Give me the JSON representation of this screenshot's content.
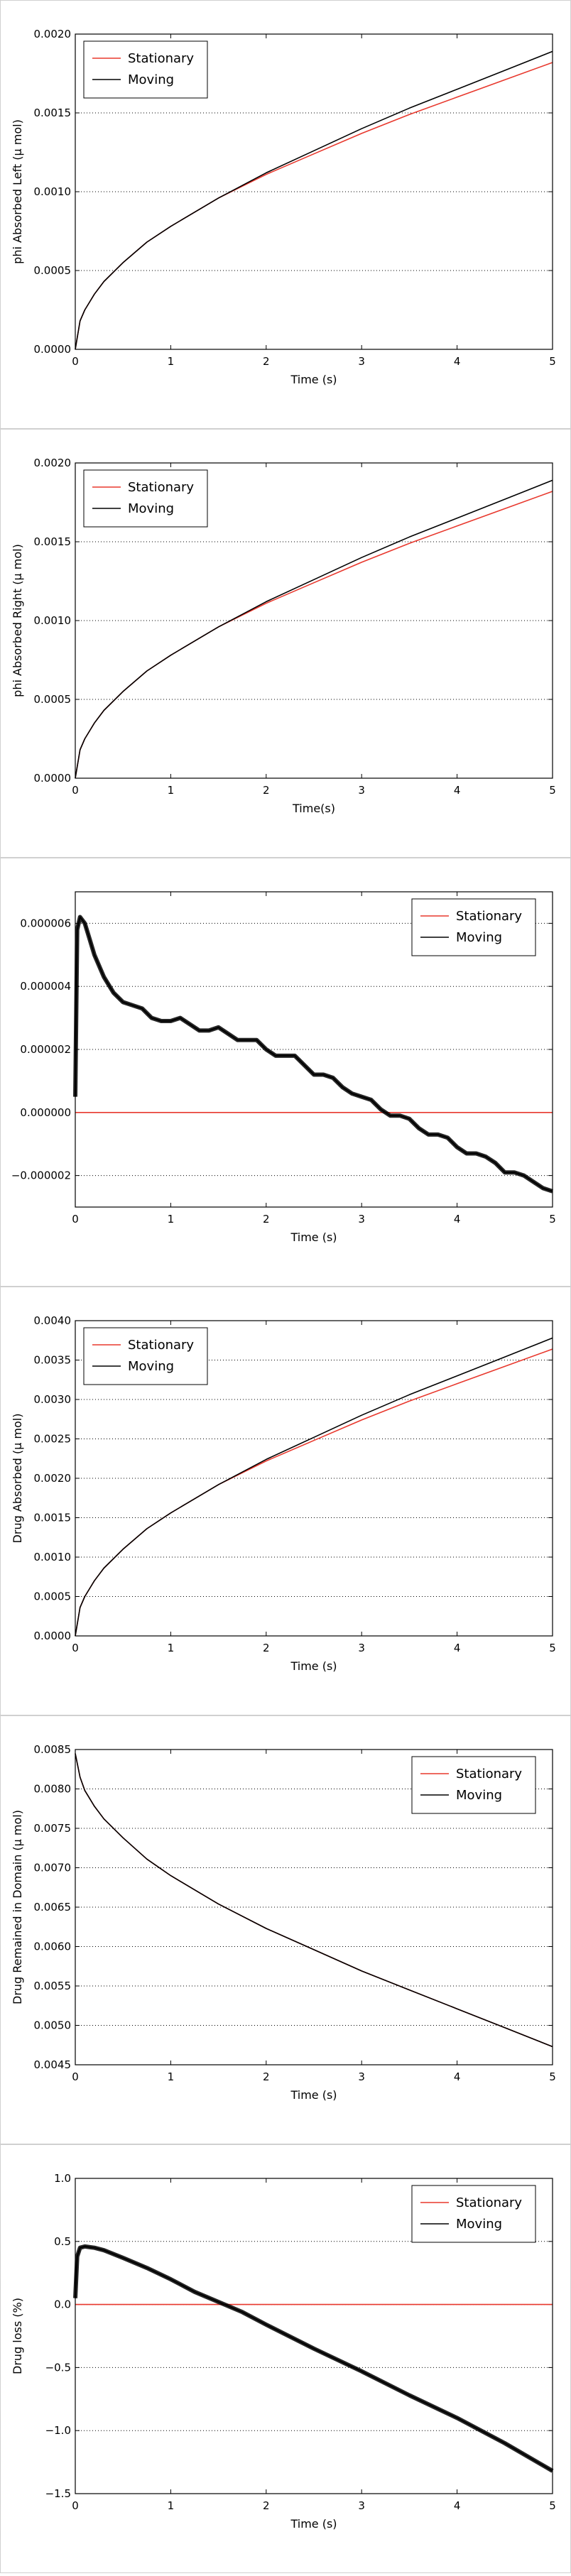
{
  "figure": {
    "background": "#ffffff",
    "panel_border_color": "#d0d0d0",
    "series_colors": {
      "Stationary": "#e8382d",
      "Moving": "#000000"
    }
  },
  "chart_data": [
    {
      "type": "line",
      "title": "",
      "xlabel": "Time (s)",
      "ylabel": "phi Absorbed Left (μ mol)",
      "xlim": [
        0,
        5
      ],
      "ylim": [
        0,
        0.002
      ],
      "xticks": [
        "0",
        "1",
        "2",
        "3",
        "4",
        "5"
      ],
      "yticks": [
        "0.0000",
        "0.0005",
        "0.0010",
        "0.0015",
        "0.0020"
      ],
      "grid": "y-dotted",
      "legend": "top-left",
      "series": [
        {
          "name": "Stationary",
          "color": "#e8382d",
          "x": [
            0,
            0.05,
            0.1,
            0.2,
            0.3,
            0.5,
            0.75,
            1,
            1.5,
            2,
            2.5,
            3,
            3.5,
            4,
            4.5,
            5
          ],
          "values": [
            0,
            0.00018,
            0.00025,
            0.00035,
            0.00043,
            0.00055,
            0.00068,
            0.00078,
            0.00096,
            0.00111,
            0.00124,
            0.00137,
            0.00149,
            0.0016,
            0.00171,
            0.00182
          ]
        },
        {
          "name": "Moving",
          "color": "#000000",
          "x": [
            0,
            0.05,
            0.1,
            0.2,
            0.3,
            0.5,
            0.75,
            1,
            1.5,
            2,
            2.5,
            3,
            3.5,
            4,
            4.5,
            5
          ],
          "values": [
            0,
            0.00018,
            0.00025,
            0.00035,
            0.00043,
            0.00055,
            0.00068,
            0.00078,
            0.00096,
            0.00112,
            0.00126,
            0.0014,
            0.00153,
            0.00165,
            0.00177,
            0.00189
          ]
        }
      ]
    },
    {
      "type": "line",
      "title": "",
      "xlabel": "Time(s)",
      "ylabel": "phi Absorbed Right (μ mol)",
      "xlim": [
        0,
        5
      ],
      "ylim": [
        0,
        0.002
      ],
      "xticks": [
        "0",
        "1",
        "2",
        "3",
        "4",
        "5"
      ],
      "yticks": [
        "0.0000",
        "0.0005",
        "0.0010",
        "0.0015",
        "0.0020"
      ],
      "grid": "y-dotted",
      "legend": "top-left",
      "series": [
        {
          "name": "Stationary",
          "color": "#e8382d",
          "x": [
            0,
            0.05,
            0.1,
            0.2,
            0.3,
            0.5,
            0.75,
            1,
            1.5,
            2,
            2.5,
            3,
            3.5,
            4,
            4.5,
            5
          ],
          "values": [
            0,
            0.00018,
            0.00025,
            0.00035,
            0.00043,
            0.00055,
            0.00068,
            0.00078,
            0.00096,
            0.00111,
            0.00124,
            0.00137,
            0.00149,
            0.0016,
            0.00171,
            0.00182
          ]
        },
        {
          "name": "Moving",
          "color": "#000000",
          "x": [
            0,
            0.05,
            0.1,
            0.2,
            0.3,
            0.5,
            0.75,
            1,
            1.5,
            2,
            2.5,
            3,
            3.5,
            4,
            4.5,
            5
          ],
          "values": [
            0,
            0.00018,
            0.00025,
            0.00035,
            0.00043,
            0.00055,
            0.00068,
            0.00078,
            0.00096,
            0.00112,
            0.00126,
            0.0014,
            0.00153,
            0.00165,
            0.00177,
            0.00189
          ]
        }
      ]
    },
    {
      "type": "line",
      "title": "",
      "xlabel": "Time (s)",
      "ylabel": "",
      "xlim": [
        0,
        5
      ],
      "ylim": [
        -3e-06,
        7e-06
      ],
      "xticks": [
        "0",
        "1",
        "2",
        "3",
        "4",
        "5"
      ],
      "yticks": [
        "−0.000002",
        "0.000000",
        "0.000002",
        "0.000004",
        "0.000006"
      ],
      "grid": "y-dotted",
      "legend": "top-right",
      "series": [
        {
          "name": "Stationary",
          "color": "#e8382d",
          "x": [
            0,
            5
          ],
          "values": [
            0,
            0
          ]
        },
        {
          "name": "Moving",
          "color": "#000000",
          "thick": true,
          "x": [
            0,
            0.02,
            0.05,
            0.1,
            0.15,
            0.2,
            0.3,
            0.4,
            0.5,
            0.6,
            0.7,
            0.8,
            0.9,
            1.0,
            1.1,
            1.2,
            1.3,
            1.4,
            1.5,
            1.6,
            1.7,
            1.8,
            1.9,
            2.0,
            2.1,
            2.2,
            2.3,
            2.4,
            2.5,
            2.6,
            2.7,
            2.8,
            2.9,
            3.0,
            3.1,
            3.2,
            3.3,
            3.4,
            3.5,
            3.6,
            3.7,
            3.8,
            3.9,
            4.0,
            4.1,
            4.2,
            4.3,
            4.4,
            4.5,
            4.6,
            4.7,
            4.8,
            4.9,
            5.0
          ],
          "values": [
            5e-07,
            5.8e-06,
            6.2e-06,
            6e-06,
            5.5e-06,
            5e-06,
            4.3e-06,
            3.8e-06,
            3.5e-06,
            3.4e-06,
            3.3e-06,
            3e-06,
            2.9e-06,
            2.9e-06,
            3e-06,
            2.8e-06,
            2.6e-06,
            2.6e-06,
            2.7e-06,
            2.5e-06,
            2.3e-06,
            2.3e-06,
            2.3e-06,
            2e-06,
            1.8e-06,
            1.8e-06,
            1.8e-06,
            1.5e-06,
            1.2e-06,
            1.2e-06,
            1.1e-06,
            8e-07,
            6e-07,
            5e-07,
            4e-07,
            1e-07,
            -1e-07,
            -1e-07,
            -2e-07,
            -5e-07,
            -7e-07,
            -7e-07,
            -8e-07,
            -1.1e-06,
            -1.3e-06,
            -1.3e-06,
            -1.4e-06,
            -1.6e-06,
            -1.9e-06,
            -1.9e-06,
            -2e-06,
            -2.2e-06,
            -2.4e-06,
            -2.5e-06
          ]
        }
      ]
    },
    {
      "type": "line",
      "title": "",
      "xlabel": "Time (s)",
      "ylabel": "Drug Absorbed (μ mol)",
      "xlim": [
        0,
        5
      ],
      "ylim": [
        0,
        0.004
      ],
      "xticks": [
        "0",
        "1",
        "2",
        "3",
        "4",
        "5"
      ],
      "yticks": [
        "0.0000",
        "0.0005",
        "0.0010",
        "0.0015",
        "0.0020",
        "0.0025",
        "0.0030",
        "0.0035",
        "0.0040"
      ],
      "grid": "y-dotted",
      "legend": "top-left",
      "series": [
        {
          "name": "Stationary",
          "color": "#e8382d",
          "x": [
            0,
            0.05,
            0.1,
            0.2,
            0.3,
            0.5,
            0.75,
            1,
            1.5,
            2,
            2.5,
            3,
            3.5,
            4,
            4.5,
            5
          ],
          "values": [
            0,
            0.00036,
            0.0005,
            0.0007,
            0.00086,
            0.0011,
            0.00136,
            0.00156,
            0.00192,
            0.00222,
            0.00248,
            0.00274,
            0.00298,
            0.0032,
            0.00342,
            0.00364
          ]
        },
        {
          "name": "Moving",
          "color": "#000000",
          "x": [
            0,
            0.05,
            0.1,
            0.2,
            0.3,
            0.5,
            0.75,
            1,
            1.5,
            2,
            2.5,
            3,
            3.5,
            4,
            4.5,
            5
          ],
          "values": [
            0,
            0.00036,
            0.0005,
            0.0007,
            0.00086,
            0.0011,
            0.00136,
            0.00156,
            0.00192,
            0.00224,
            0.00252,
            0.0028,
            0.00306,
            0.0033,
            0.00354,
            0.00378
          ]
        }
      ]
    },
    {
      "type": "line",
      "title": "",
      "xlabel": "Time (s)",
      "ylabel": "Drug Remained in Domain (μ mol)",
      "xlim": [
        0,
        5
      ],
      "ylim": [
        0.0045,
        0.0085
      ],
      "xticks": [
        "0",
        "1",
        "2",
        "3",
        "4",
        "5"
      ],
      "yticks": [
        "0.0045",
        "0.0050",
        "0.0055",
        "0.0060",
        "0.0065",
        "0.0070",
        "0.0075",
        "0.0080",
        "0.0085"
      ],
      "grid": "y-dotted",
      "legend": "top-right",
      "series": [
        {
          "name": "Stationary",
          "color": "#e8382d",
          "x": [
            0,
            0.05,
            0.1,
            0.2,
            0.3,
            0.5,
            0.75,
            1,
            1.5,
            2,
            2.5,
            3,
            3.5,
            4,
            4.5,
            5
          ],
          "values": [
            0.00845,
            0.00815,
            0.00798,
            0.00778,
            0.00762,
            0.00738,
            0.00711,
            0.0069,
            0.00654,
            0.00623,
            0.00596,
            0.00569,
            0.00545,
            0.00521,
            0.00497,
            0.00473
          ]
        },
        {
          "name": "Moving",
          "color": "#000000",
          "x": [
            0,
            0.05,
            0.1,
            0.2,
            0.3,
            0.5,
            0.75,
            1,
            1.5,
            2,
            2.5,
            3,
            3.5,
            4,
            4.5,
            5
          ],
          "values": [
            0.00845,
            0.00815,
            0.00798,
            0.00778,
            0.00762,
            0.00738,
            0.00711,
            0.0069,
            0.00654,
            0.00623,
            0.00596,
            0.00569,
            0.00545,
            0.00521,
            0.00497,
            0.00473
          ]
        }
      ]
    },
    {
      "type": "line",
      "title": "",
      "xlabel": "Time (s)",
      "ylabel": "Drug loss (%)",
      "xlim": [
        0,
        5
      ],
      "ylim": [
        -1.5,
        1.0
      ],
      "xticks": [
        "0",
        "1",
        "2",
        "3",
        "4",
        "5"
      ],
      "yticks": [
        "−1.5",
        "−1.0",
        "−0.5",
        "0.0",
        "0.5",
        "1.0"
      ],
      "grid": "y-dotted",
      "legend": "top-right",
      "series": [
        {
          "name": "Stationary",
          "color": "#e8382d",
          "x": [
            0,
            5
          ],
          "values": [
            0,
            0
          ]
        },
        {
          "name": "Moving",
          "color": "#000000",
          "thick": true,
          "x": [
            0,
            0.02,
            0.05,
            0.1,
            0.2,
            0.3,
            0.5,
            0.75,
            1,
            1.25,
            1.5,
            1.75,
            2,
            2.5,
            3,
            3.5,
            4,
            4.5,
            5
          ],
          "values": [
            0.05,
            0.38,
            0.45,
            0.46,
            0.45,
            0.43,
            0.37,
            0.29,
            0.2,
            0.1,
            0.02,
            -0.06,
            -0.16,
            -0.35,
            -0.53,
            -0.72,
            -0.9,
            -1.1,
            -1.32
          ]
        }
      ]
    }
  ]
}
